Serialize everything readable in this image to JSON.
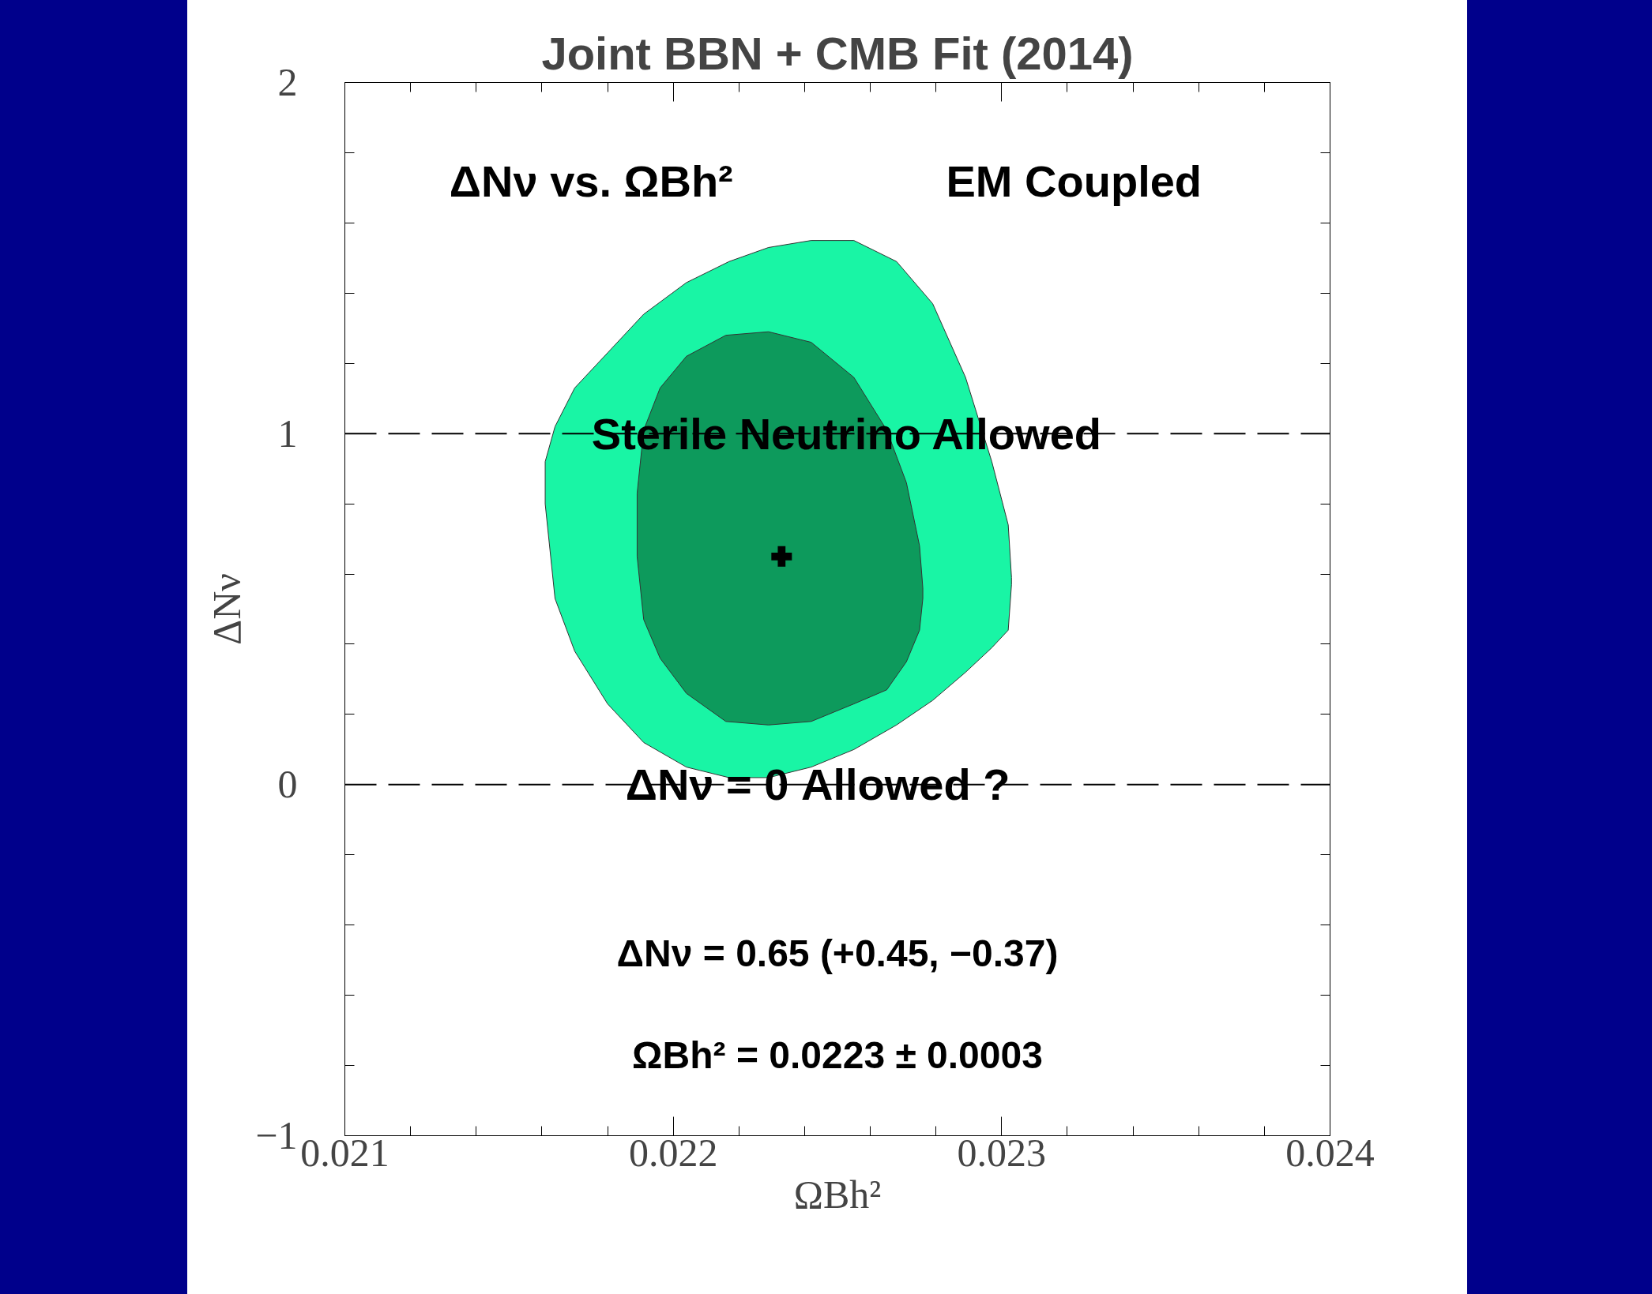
{
  "chart_data": {
    "type": "area",
    "title": "Joint BBN + CMB Fit (2014)",
    "xlabel": "ΩBh²",
    "ylabel": "ΔNν",
    "xlim": [
      0.021,
      0.024
    ],
    "xticks": [
      0.021,
      0.022,
      0.023,
      0.024
    ],
    "ylim": [
      -1,
      2
    ],
    "yticks": [
      -1,
      0,
      1,
      2
    ],
    "grid": false,
    "series": [
      {
        "color": "#19f5a5",
        "x": [
          0.02161,
          0.02164,
          0.0217,
          0.0218,
          0.02191,
          0.02204,
          0.02217,
          0.02229,
          0.02242,
          0.02255,
          0.02268,
          0.02279,
          0.02289,
          0.02297,
          0.02302,
          0.02303,
          0.02303,
          0.02302,
          0.02297,
          0.02289,
          0.02279,
          0.02268,
          0.02255,
          0.02242,
          0.02229,
          0.02217,
          0.02204,
          0.02191,
          0.0218,
          0.0217,
          0.02164,
          0.02161
        ],
        "values": [
          0.92,
          1.02,
          1.13,
          1.23,
          1.34,
          1.43,
          1.49,
          1.53,
          1.55,
          1.55,
          1.49,
          1.37,
          1.16,
          0.92,
          0.74,
          0.59,
          0.57,
          0.44,
          0.39,
          0.32,
          0.24,
          0.17,
          0.1,
          0.05,
          0.02,
          0.02,
          0.05,
          0.12,
          0.23,
          0.38,
          0.53,
          0.8
        ]
      },
      {
        "color": "#0d9a5c",
        "x": [
          0.02189,
          0.02191,
          0.02196,
          0.02204,
          0.02216,
          0.02229,
          0.02242,
          0.02255,
          0.02265,
          0.02271,
          0.02275,
          0.02276,
          0.02276,
          0.02275,
          0.02271,
          0.02265,
          0.02255,
          0.02242,
          0.02229,
          0.02216,
          0.02204,
          0.02196,
          0.02191,
          0.02189
        ],
        "values": [
          0.83,
          1.01,
          1.13,
          1.22,
          1.28,
          1.29,
          1.26,
          1.16,
          1.01,
          0.86,
          0.68,
          0.56,
          0.53,
          0.44,
          0.35,
          0.27,
          0.23,
          0.18,
          0.17,
          0.18,
          0.26,
          0.36,
          0.47,
          0.65
        ]
      },
      {
        "type": "scatter",
        "marker": "cross",
        "color": "#000000",
        "x": [
          0.02233
        ],
        "values": [
          0.65
        ]
      }
    ],
    "ref_lines": [
      {
        "axis": "y",
        "value": 1,
        "line_style": "dashed",
        "color": "#000000"
      },
      {
        "axis": "y",
        "value": 0,
        "line_style": "dashed",
        "color": "#000000"
      }
    ],
    "annotations": [
      "ΔNν vs. ΩBh²",
      "EM Coupled",
      {
        "text": "Sterile Neutrino Allowed",
        "x": 0.02253,
        "y": 1
      },
      {
        "text": "ΔNν = 0 Allowed ?",
        "x": 0.02244,
        "y": 0
      },
      "ΔNν = 0.65 (+0.45, −0.37)",
      "ΩBh² = 0.0223 ± 0.0003"
    ]
  }
}
